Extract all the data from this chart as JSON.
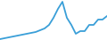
{
  "x": [
    0,
    5,
    10,
    15,
    20,
    25,
    30,
    35,
    40,
    45,
    50,
    55,
    60,
    65,
    70,
    75,
    80,
    85,
    90,
    95,
    100,
    105,
    110,
    115,
    120
  ],
  "y": [
    44,
    43,
    42,
    41,
    40,
    39,
    38,
    37,
    36,
    34,
    32,
    28,
    20,
    10,
    2,
    20,
    28,
    38,
    35,
    35,
    28,
    28,
    22,
    22,
    18
  ],
  "line_color": "#3a9fd8",
  "line_width": 1.3,
  "background_color": "#ffffff",
  "figwidth": 1.2,
  "figheight": 0.45,
  "dpi": 100
}
